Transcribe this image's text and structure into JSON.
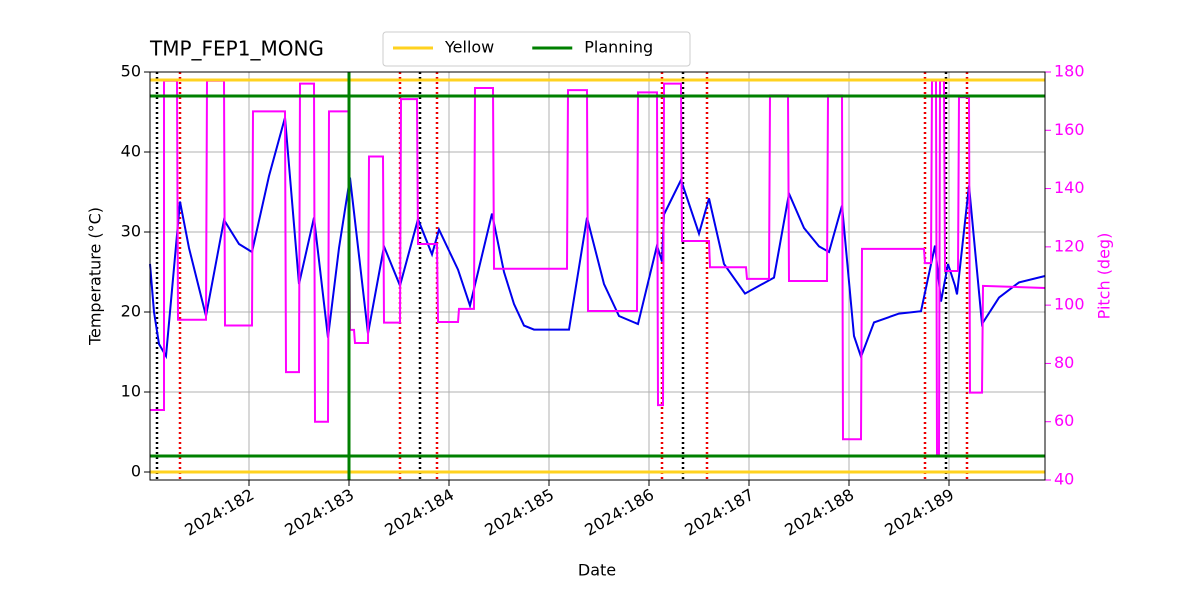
{
  "chart_data": {
    "type": "line",
    "title": "TMP_FEP1_MONG",
    "xlabel": "Date",
    "ylabel": "Temperature (°C)",
    "y2label": "Pitch (deg)",
    "xlim": [
      181.01,
      189.96
    ],
    "ylim": [
      -1,
      50
    ],
    "y2lim": [
      40,
      180
    ],
    "xticks": [
      {
        "value": 182,
        "label": "2024:182"
      },
      {
        "value": 183,
        "label": "2024:183"
      },
      {
        "value": 184,
        "label": "2024:184"
      },
      {
        "value": 185,
        "label": "2024:185"
      },
      {
        "value": 186,
        "label": "2024:186"
      },
      {
        "value": 187,
        "label": "2024:187"
      },
      {
        "value": 188,
        "label": "2024:188"
      },
      {
        "value": 189,
        "label": "2024:189"
      }
    ],
    "yticks": [
      0,
      10,
      20,
      30,
      40,
      50
    ],
    "y2ticks": [
      40,
      60,
      80,
      100,
      120,
      140,
      160,
      180
    ],
    "grid": true,
    "legend": "top",
    "limit_lines": [
      {
        "name": "Yellow",
        "color": "#ffd21f",
        "values": [
          49,
          0
        ]
      },
      {
        "name": "Planning",
        "color": "#008000",
        "values": [
          47,
          2
        ],
        "x": [
          183.0
        ]
      }
    ],
    "black_vlines": [
      181.08,
      183.71,
      186.34,
      188.97
    ],
    "red_vlines": [
      181.31,
      183.51,
      183.88,
      186.13,
      186.58,
      188.76,
      189.18
    ],
    "series": [
      {
        "color": "#0000ee",
        "axis": "y",
        "x": [
          181.01,
          181.05,
          181.1,
          181.17,
          181.31,
          181.4,
          181.57,
          181.75,
          181.9,
          182.03,
          182.2,
          182.36,
          182.5,
          182.65,
          182.79,
          182.9,
          183.01,
          183.19,
          183.35,
          183.51,
          183.69,
          183.83,
          183.9,
          184.09,
          184.21,
          184.43,
          184.55,
          184.65,
          184.75,
          184.85,
          185.2,
          185.38,
          185.55,
          185.7,
          185.89,
          186.08,
          186.13,
          186.15,
          186.32,
          186.5,
          186.6,
          186.75,
          186.96,
          187.25,
          187.4,
          187.55,
          187.7,
          187.8,
          187.93,
          188.05,
          188.12,
          188.25,
          188.5,
          188.72,
          188.86,
          188.92,
          188.99,
          189.06,
          189.08,
          189.2,
          189.33,
          189.5,
          189.7,
          189.96
        ],
        "values": [
          26,
          20,
          16,
          14.5,
          33.8,
          28,
          19.5,
          31.5,
          28.5,
          27.5,
          37,
          44.3,
          23.5,
          31.8,
          16.8,
          28,
          36.8,
          17.3,
          28.2,
          23.3,
          31.6,
          27.2,
          30.3,
          25.3,
          20.8,
          32.3,
          25,
          21,
          18.3,
          17.8,
          17.8,
          31.8,
          23.5,
          19.5,
          18.5,
          28.3,
          26.3,
          32.2,
          36.5,
          29.8,
          34.2,
          26,
          22.3,
          24.3,
          34.8,
          30.5,
          28.2,
          27.5,
          33.3,
          17,
          14.4,
          18.7,
          19.8,
          20.1,
          28.3,
          21.3,
          26,
          23.3,
          22.2,
          35.8,
          18.5,
          21.8,
          23.7,
          24.5
        ]
      },
      {
        "color": "#ff00ff",
        "axis": "y2",
        "x": [
          181.01,
          181.15,
          181.15,
          181.28,
          181.29,
          181.57,
          181.58,
          181.75,
          181.76,
          182.03,
          182.04,
          182.36,
          182.37,
          182.5,
          182.51,
          182.65,
          182.66,
          182.79,
          182.8,
          183.0,
          183.01,
          183.05,
          183.06,
          183.19,
          183.2,
          183.34,
          183.35,
          183.51,
          183.52,
          183.68,
          183.69,
          183.88,
          183.89,
          184.09,
          184.1,
          184.25,
          184.26,
          184.44,
          184.45,
          185.18,
          185.19,
          185.38,
          185.39,
          185.88,
          185.89,
          186.08,
          186.09,
          186.14,
          186.15,
          186.32,
          186.33,
          186.6,
          186.61,
          186.97,
          186.98,
          187.2,
          187.21,
          187.39,
          187.4,
          187.78,
          187.79,
          187.93,
          187.94,
          188.12,
          188.13,
          188.75,
          188.76,
          188.82,
          188.83,
          188.87,
          188.88,
          188.9,
          188.91,
          188.95,
          188.96,
          189.09,
          189.1,
          189.2,
          189.21,
          189.33,
          189.34,
          189.96
        ],
        "values": [
          64,
          64,
          177,
          177,
          95,
          95,
          177,
          177,
          93,
          93,
          166.5,
          166.5,
          77,
          77,
          176,
          176,
          60,
          60,
          166.5,
          166.5,
          91.5,
          91.5,
          87,
          87,
          151,
          151,
          94,
          94,
          170.7,
          170.7,
          121,
          121,
          94.2,
          94.2,
          98.7,
          98.7,
          174.5,
          174.5,
          112.5,
          112.5,
          173.8,
          173.8,
          98,
          98,
          173,
          173,
          65.7,
          65.7,
          176,
          176,
          122,
          122,
          113,
          113,
          109,
          109,
          172,
          172,
          108.3,
          108.3,
          172,
          172,
          54,
          54,
          119.3,
          119.3,
          114.4,
          114.4,
          177,
          177,
          49,
          49,
          177,
          177,
          111.7,
          111.7,
          171.4,
          171.4,
          70,
          70,
          106.6,
          105.9
        ]
      }
    ]
  }
}
